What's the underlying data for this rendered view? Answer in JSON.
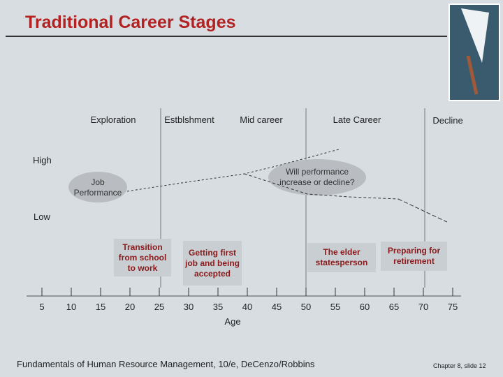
{
  "header": {
    "title": "Traditional Career Stages"
  },
  "stages": [
    "Exploration",
    "Estblshment",
    "Mid career",
    "Late Career",
    "Decline"
  ],
  "levels": {
    "high": "High",
    "low": "Low"
  },
  "callouts": {
    "job_performance": "Job Performance",
    "question": "Will performance increase or decline?"
  },
  "boxes": [
    "Transition from school to work",
    "Getting first job and being accepted",
    "The elder statesperson",
    "Preparing for retirement"
  ],
  "axis": {
    "ticks": [
      5,
      10,
      15,
      20,
      25,
      30,
      35,
      40,
      45,
      50,
      55,
      60,
      65,
      70,
      75
    ],
    "label": "Age"
  },
  "footer": {
    "source": "Fundamentals of Human Resource Management, 10/e, DeCenzo/Robbins",
    "slide": "Chapter 8, slide 12"
  }
}
